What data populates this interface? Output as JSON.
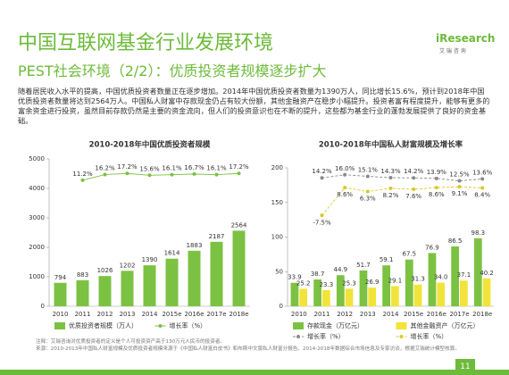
{
  "header": {
    "title": "中国互联网基金行业发展环境",
    "subtitle": "PEST社会环境（2/2）：优质投资者规模逐步扩大",
    "logo": "iResearch",
    "logo_sub": "艾 瑞 咨 询"
  },
  "paragraph": "随着居民收入水平的提高，中国优质投资者数量正在逐步增加。2014年中国优质投资者数量为1390万人，同比增长15.6%，预计到2018年中国优质投资者数量将达到2564万人。中国私人财富中存款现金仍占有较大份额，其他金融资产在稳步小幅提升。投资者富有程度提升，能够有更多的富余资金进行投资，虽然目前存款仍然是主要的资金流向，但人们的投资意识也在不断的提升，这些都为基金行业的蓬勃发展提供了良好的资金基础。",
  "chart_data": [
    {
      "type": "bar",
      "title": "2010-2018年中国优质投资者规模",
      "categories": [
        "2010",
        "2011",
        "2012",
        "2013",
        "2014",
        "2015e",
        "2016e",
        "2017e",
        "2018e"
      ],
      "ylim": [
        0,
        5000
      ],
      "yticks": [
        0,
        1000,
        2000,
        3000,
        4000,
        5000
      ],
      "y2lim": [
        -100,
        30
      ],
      "series": [
        {
          "name": "优质投资者规模（万人）",
          "color": "#7cc242",
          "values": [
            794,
            883,
            1026,
            1202,
            1390,
            1614,
            1883,
            2187,
            2564
          ]
        },
        {
          "name": "增长率（%）",
          "color": "#7cc242",
          "axis": "y2",
          "type": "line",
          "values": [
            null,
            11.2,
            16.2,
            17.2,
            15.6,
            16.1,
            16.7,
            16.1,
            17.2
          ],
          "value_labels": [
            null,
            "11.2%",
            "16.2%",
            "17.2%",
            "15.6%",
            "16.1%",
            "16.7%",
            "16.1%",
            "17.2%"
          ]
        }
      ]
    },
    {
      "type": "bar",
      "title": "2010-2018年中国私人财富规模及增长率",
      "categories": [
        "2010",
        "2011",
        "2012",
        "2013",
        "2014",
        "2015e",
        "2016e",
        "2017e",
        "2018e"
      ],
      "ylim": [
        0,
        200
      ],
      "yticks": [
        0,
        50,
        100,
        150,
        200
      ],
      "y2lim": [
        -60,
        20
      ],
      "series": [
        {
          "name": "存款现金（万亿元）",
          "color": "#7cc242",
          "values": [
            33.9,
            38.7,
            44.9,
            51.7,
            59.1,
            67.5,
            76.9,
            86.5,
            98.3
          ]
        },
        {
          "name": "其他金融资产（万亿元）",
          "color": "#f2e33a",
          "values": [
            25.2,
            23.3,
            25.3,
            26.9,
            29.1,
            31.3,
            34,
            37.1,
            40.2
          ],
          "value_labels": [
            "25.2",
            "23.3",
            "25.3",
            "26.9",
            "29.1",
            "31.3",
            "34.0",
            "37.1",
            "40.2"
          ]
        },
        {
          "name": "增长率（%）",
          "color": "#8a8a8a",
          "axis": "y2",
          "type": "line",
          "line_style": "dashed",
          "values": [
            null,
            14.2,
            16.0,
            15.1,
            14.3,
            14.2,
            13.9,
            12.5,
            13.6
          ],
          "value_labels": [
            null,
            "14.2%",
            "16.0%",
            "15.1%",
            "14.3%",
            "14.2%",
            "13.9%",
            "12.5%",
            "13.6%"
          ]
        },
        {
          "name": "增长率（%）",
          "color": "#d9c82a",
          "axis": "y2",
          "type": "line",
          "line_style": "dashed",
          "values": [
            null,
            -7.5,
            8.6,
            6.3,
            8.2,
            7.6,
            8.6,
            9.1,
            8.4
          ],
          "value_labels": [
            null,
            "-7.5%",
            "8.6%",
            "6.3%",
            "8.2%",
            "7.6%",
            "8.6%",
            "9.1%",
            "8.4%"
          ]
        }
      ]
    }
  ],
  "notes": [
    "注释：艾瑞咨询对优质投资者的定义是个人可投资资产高于130万元人民币的投资者。",
    "来源：2010-2013年中国私人财富规模及优质投资者规模来源于《中国私人财富白皮书》和布斯中文版私人财富分报告。2014-2018年数据综合市场信息及专家访谈，根据艾瑞统计模型核算。"
  ],
  "page_number": "11"
}
